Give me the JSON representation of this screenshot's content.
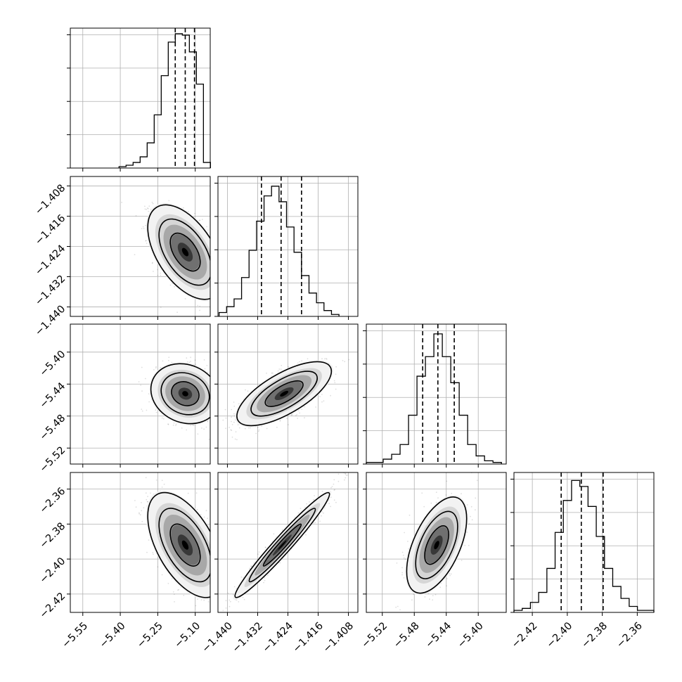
{
  "chart_data": {
    "type": "corner",
    "grid": true,
    "params": [
      {
        "ticks": [
          -5.55,
          -5.4,
          -5.25,
          -5.1
        ],
        "tick_labels": [
          "−5.55",
          "−5.40",
          "−5.25",
          "−5.10"
        ],
        "range": [
          -5.6,
          -5.04
        ],
        "hist_edges_range": [
          -5.405,
          -5.039
        ],
        "hist_counts": [
          1,
          2,
          4,
          8,
          18,
          38,
          66,
          90,
          96,
          95,
          83,
          60,
          4
        ],
        "quantiles": [
          -5.18,
          -5.14,
          -5.103
        ],
        "hist_ymax": 100
      },
      {
        "ticks": [
          -1.44,
          -1.432,
          -1.424,
          -1.416,
          -1.408
        ],
        "tick_labels": [
          "−1.440",
          "−1.432",
          "−1.424",
          "−1.416",
          "−1.408"
        ],
        "range": [
          -1.4425,
          -1.4055
        ],
        "hist_edges_range": [
          -1.4422,
          -1.4105
        ],
        "hist_counts": [
          2,
          5,
          9,
          20,
          34,
          49,
          62,
          67,
          59,
          46,
          33,
          21,
          12,
          7,
          3,
          1
        ],
        "quantiles": [
          -1.431,
          -1.4258,
          -1.4204
        ],
        "hist_ymax": 72
      },
      {
        "ticks": [
          -5.52,
          -5.48,
          -5.44,
          -5.4
        ],
        "tick_labels": [
          "−5.52",
          "−5.48",
          "−5.44",
          "−5.40"
        ],
        "range": [
          -5.54,
          -5.365
        ],
        "hist_edges_range": [
          -5.54,
          -5.371
        ],
        "hist_counts": [
          1,
          1,
          3,
          6,
          12,
          30,
          54,
          66,
          80,
          66,
          50,
          30,
          12,
          5,
          2,
          1
        ],
        "quantiles": [
          -5.4695,
          -5.4505,
          -5.43
        ],
        "hist_ymax": 86
      },
      {
        "ticks": [
          -2.42,
          -2.4,
          -2.38,
          -2.36
        ],
        "tick_labels": [
          "−2.42",
          "−2.40",
          "−2.38",
          "−2.36"
        ],
        "range": [
          -2.4305,
          -2.3505
        ],
        "hist_edges_range": [
          -2.4305,
          -2.3505
        ],
        "hist_counts": [
          1,
          2,
          5,
          10,
          22,
          40,
          56,
          66,
          63,
          53,
          38,
          22,
          13,
          7,
          3,
          1,
          1
        ],
        "quantiles": [
          -2.4035,
          -2.392,
          -2.3795
        ],
        "hist_ymax": 70
      }
    ],
    "pairs": [
      {
        "x": 0,
        "y": 1,
        "center": [
          -5.14,
          -1.4255
        ],
        "sigma": [
          0.06,
          0.005
        ],
        "rho": -0.52
      },
      {
        "x": 0,
        "y": 2,
        "center": [
          -5.14,
          -5.452
        ],
        "sigma": [
          0.055,
          0.015
        ],
        "rho": -0.15
      },
      {
        "x": 1,
        "y": 2,
        "center": [
          -1.425,
          -5.452
        ],
        "sigma": [
          0.005,
          0.016
        ],
        "rho": 0.7
      },
      {
        "x": 0,
        "y": 3,
        "center": [
          -5.14,
          -2.392
        ],
        "sigma": [
          0.06,
          0.012
        ],
        "rho": -0.55
      },
      {
        "x": 1,
        "y": 3,
        "center": [
          -1.4255,
          -2.392
        ],
        "sigma": [
          0.005,
          0.012
        ],
        "rho": 0.97
      },
      {
        "x": 2,
        "y": 3,
        "center": [
          -5.452,
          -2.392
        ],
        "sigma": [
          0.015,
          0.011
        ],
        "rho": 0.55
      }
    ]
  }
}
